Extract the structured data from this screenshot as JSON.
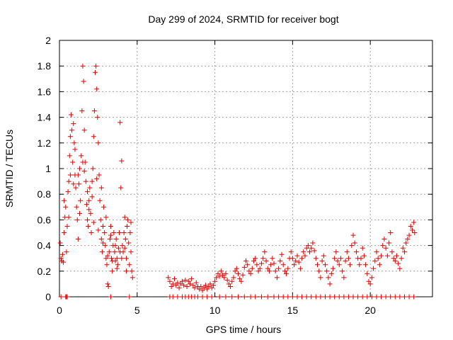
{
  "chart_data": {
    "type": "scatter",
    "title": "Day 299 of 2024, SRMTID for receiver bogt",
    "xlabel": "GPS time / hours",
    "ylabel": "SRMTID / TECUs",
    "xlim": [
      0,
      24
    ],
    "ylim": [
      0,
      2
    ],
    "xticks": [
      0,
      5,
      10,
      15,
      20
    ],
    "yticks": [
      0,
      0.2,
      0.4,
      0.6,
      0.8,
      1,
      1.2,
      1.4,
      1.6,
      1.8,
      2
    ],
    "xtick_labels": [
      "0",
      "5",
      "10",
      "15",
      "20"
    ],
    "ytick_labels": [
      "0",
      "0.2",
      "0.4",
      "0.6",
      "0.8",
      "1",
      "1.2",
      "1.4",
      "1.6",
      "1.8",
      "2"
    ],
    "grid": true,
    "marker": "+",
    "marker_color": "#e00000",
    "series": [
      {
        "name": "SRMTID",
        "points": [
          [
            0.05,
            0.42
          ],
          [
            0.1,
            0.3
          ],
          [
            0.15,
            0.28
          ],
          [
            0.2,
            0.33
          ],
          [
            0.25,
            0.27
          ],
          [
            0.3,
            0.5
          ],
          [
            0.35,
            0.62
          ],
          [
            0.4,
            0.7
          ],
          [
            0.45,
            0.35
          ],
          [
            0.5,
            0.55
          ],
          [
            0.55,
            0.82
          ],
          [
            0.6,
            0.9
          ],
          [
            0.65,
            1.1
          ],
          [
            0.7,
            1.25
          ],
          [
            0.75,
            1.42
          ],
          [
            0.8,
            1.3
          ],
          [
            0.85,
            1.05
          ],
          [
            0.9,
            1.35
          ],
          [
            0.95,
            1.2
          ],
          [
            1.0,
            0.95
          ],
          [
            1.05,
            0.85
          ],
          [
            1.1,
            0.7
          ],
          [
            1.15,
            0.6
          ],
          [
            1.2,
            0.45
          ],
          [
            1.25,
            0.88
          ],
          [
            1.3,
            1.0
          ],
          [
            1.35,
            0.75
          ],
          [
            1.4,
            1.1
          ],
          [
            1.45,
            1.45
          ],
          [
            1.5,
            1.8
          ],
          [
            1.55,
            1.68
          ],
          [
            1.6,
            1.3
          ],
          [
            1.65,
            1.05
          ],
          [
            1.7,
            0.9
          ],
          [
            1.75,
            0.72
          ],
          [
            1.8,
            0.6
          ],
          [
            1.85,
            0.55
          ],
          [
            1.9,
            0.75
          ],
          [
            1.95,
            0.85
          ],
          [
            2.0,
            0.65
          ],
          [
            2.05,
            0.5
          ],
          [
            2.1,
            0.9
          ],
          [
            2.15,
            1.0
          ],
          [
            2.2,
            1.25
          ],
          [
            2.25,
            1.45
          ],
          [
            2.3,
            1.75
          ],
          [
            2.35,
            1.8
          ],
          [
            2.4,
            1.62
          ],
          [
            2.45,
            1.4
          ],
          [
            2.5,
            1.2
          ],
          [
            2.55,
            0.95
          ],
          [
            2.6,
            0.75
          ],
          [
            2.65,
            0.6
          ],
          [
            2.7,
            0.45
          ],
          [
            2.75,
            0.35
          ],
          [
            2.8,
            0.55
          ],
          [
            2.85,
            0.7
          ],
          [
            2.9,
            0.5
          ],
          [
            2.95,
            0.4
          ],
          [
            3.0,
            0.3
          ],
          [
            3.05,
            0.25
          ],
          [
            3.1,
            0.1
          ],
          [
            3.15,
            0.08
          ],
          [
            3.2,
            0.35
          ],
          [
            3.25,
            0.45
          ],
          [
            3.3,
            0.55
          ],
          [
            3.35,
            0.3
          ],
          [
            3.4,
            0.2
          ],
          [
            3.45,
            0.4
          ],
          [
            3.5,
            0.5
          ],
          [
            3.55,
            0.35
          ],
          [
            3.6,
            0.28
          ],
          [
            3.65,
            0.45
          ],
          [
            3.7,
            0.3
          ],
          [
            3.75,
            0.25
          ],
          [
            3.8,
            0.38
          ],
          [
            3.85,
            0.5
          ],
          [
            3.9,
            1.36
          ],
          [
            3.95,
            0.85
          ],
          [
            4.0,
            1.06
          ],
          [
            4.05,
            0.4
          ],
          [
            4.1,
            0.35
          ],
          [
            4.15,
            0.5
          ],
          [
            4.2,
            0.62
          ],
          [
            4.25,
            0.45
          ],
          [
            4.3,
            0.3
          ],
          [
            4.35,
            0.55
          ],
          [
            4.4,
            0.6
          ],
          [
            4.45,
            0.42
          ],
          [
            4.5,
            0.25
          ],
          [
            4.55,
            0.5
          ],
          [
            4.6,
            0.58
          ],
          [
            4.65,
            0.2
          ],
          [
            4.7,
            0.15
          ],
          [
            0.3,
            0.75
          ],
          [
            0.6,
            0.62
          ],
          [
            0.9,
            0.88
          ],
          [
            1.2,
            0.95
          ],
          [
            1.5,
            1.05
          ],
          [
            1.8,
            0.82
          ],
          [
            2.1,
            0.78
          ],
          [
            2.4,
            0.92
          ],
          [
            2.7,
            0.85
          ],
          [
            3.0,
            0.62
          ],
          [
            3.3,
            0.48
          ],
          [
            3.6,
            0.4
          ],
          [
            3.9,
            0.35
          ],
          [
            4.2,
            0.38
          ],
          [
            0.7,
            0.95
          ],
          [
            1.0,
            1.15
          ],
          [
            1.3,
            0.65
          ],
          [
            1.6,
            0.98
          ],
          [
            1.9,
            0.68
          ],
          [
            2.2,
            0.58
          ],
          [
            2.5,
            0.52
          ],
          [
            2.8,
            0.42
          ],
          [
            3.1,
            0.32
          ],
          [
            3.4,
            0.28
          ],
          [
            3.7,
            0.22
          ],
          [
            4.0,
            0.3
          ],
          [
            4.3,
            0.2
          ],
          [
            4.6,
            0.35
          ],
          [
            7.0,
            0.15
          ],
          [
            7.1,
            0.12
          ],
          [
            7.2,
            0.08
          ],
          [
            7.3,
            0.1
          ],
          [
            7.4,
            0.14
          ],
          [
            7.5,
            0.09
          ],
          [
            7.6,
            0.11
          ],
          [
            7.7,
            0.07
          ],
          [
            7.8,
            0.1
          ],
          [
            7.9,
            0.12
          ],
          [
            8.0,
            0.09
          ],
          [
            8.1,
            0.13
          ],
          [
            8.2,
            0.08
          ],
          [
            8.3,
            0.12
          ],
          [
            8.4,
            0.1
          ],
          [
            8.5,
            0.14
          ],
          [
            8.6,
            0.09
          ],
          [
            8.7,
            0.07
          ],
          [
            8.8,
            0.11
          ],
          [
            8.9,
            0.08
          ],
          [
            9.0,
            0.06
          ],
          [
            9.1,
            0.08
          ],
          [
            9.2,
            0.05
          ],
          [
            9.3,
            0.07
          ],
          [
            9.4,
            0.09
          ],
          [
            9.5,
            0.06
          ],
          [
            9.6,
            0.08
          ],
          [
            9.7,
            0.1
          ],
          [
            9.8,
            0.07
          ],
          [
            9.9,
            0.09
          ],
          [
            10.0,
            0.12
          ],
          [
            10.1,
            0.15
          ],
          [
            10.2,
            0.18
          ],
          [
            10.3,
            0.16
          ],
          [
            10.4,
            0.2
          ],
          [
            10.5,
            0.17
          ],
          [
            10.6,
            0.15
          ],
          [
            10.7,
            0.18
          ],
          [
            10.8,
            0.13
          ],
          [
            10.9,
            0.1
          ],
          [
            11.0,
            0.08
          ],
          [
            11.1,
            0.12
          ],
          [
            11.2,
            0.15
          ],
          [
            11.3,
            0.2
          ],
          [
            11.4,
            0.22
          ],
          [
            11.5,
            0.18
          ],
          [
            11.6,
            0.14
          ],
          [
            11.7,
            0.12
          ],
          [
            11.8,
            0.17
          ],
          [
            11.9,
            0.23
          ],
          [
            12.0,
            0.28
          ],
          [
            12.1,
            0.25
          ],
          [
            12.2,
            0.2
          ],
          [
            12.3,
            0.18
          ],
          [
            12.4,
            0.22
          ],
          [
            12.5,
            0.28
          ],
          [
            12.6,
            0.3
          ],
          [
            12.7,
            0.25
          ],
          [
            12.8,
            0.2
          ],
          [
            12.9,
            0.22
          ],
          [
            13.0,
            0.26
          ],
          [
            13.1,
            0.3
          ],
          [
            13.2,
            0.35
          ],
          [
            13.3,
            0.28
          ],
          [
            13.4,
            0.22
          ],
          [
            13.5,
            0.2
          ],
          [
            13.6,
            0.25
          ],
          [
            13.7,
            0.3
          ],
          [
            13.8,
            0.26
          ],
          [
            13.9,
            0.2
          ],
          [
            14.0,
            0.15
          ],
          [
            14.1,
            0.22
          ],
          [
            14.2,
            0.28
          ],
          [
            14.3,
            0.33
          ],
          [
            14.4,
            0.25
          ],
          [
            14.5,
            0.2
          ],
          [
            14.6,
            0.18
          ],
          [
            14.7,
            0.22
          ],
          [
            14.8,
            0.3
          ],
          [
            14.9,
            0.35
          ],
          [
            15.0,
            0.3
          ],
          [
            15.1,
            0.25
          ],
          [
            15.2,
            0.28
          ],
          [
            15.3,
            0.32
          ],
          [
            15.4,
            0.27
          ],
          [
            15.5,
            0.22
          ],
          [
            15.6,
            0.3
          ],
          [
            15.7,
            0.35
          ],
          [
            15.8,
            0.32
          ],
          [
            15.9,
            0.38
          ],
          [
            16.0,
            0.4
          ],
          [
            16.1,
            0.35
          ],
          [
            16.2,
            0.38
          ],
          [
            16.3,
            0.42
          ],
          [
            16.4,
            0.36
          ],
          [
            16.5,
            0.3
          ],
          [
            16.6,
            0.25
          ],
          [
            16.7,
            0.2
          ],
          [
            16.8,
            0.15
          ],
          [
            16.9,
            0.28
          ],
          [
            17.0,
            0.32
          ],
          [
            17.1,
            0.25
          ],
          [
            17.2,
            0.2
          ],
          [
            17.3,
            0.15
          ],
          [
            17.4,
            0.1
          ],
          [
            17.5,
            0.18
          ],
          [
            17.6,
            0.22
          ],
          [
            17.7,
            0.3
          ],
          [
            17.8,
            0.35
          ],
          [
            17.9,
            0.28
          ],
          [
            18.0,
            0.25
          ],
          [
            18.1,
            0.3
          ],
          [
            18.2,
            0.2
          ],
          [
            18.3,
            0.15
          ],
          [
            18.4,
            0.28
          ],
          [
            18.5,
            0.35
          ],
          [
            18.6,
            0.3
          ],
          [
            18.7,
            0.25
          ],
          [
            18.8,
            0.4
          ],
          [
            18.9,
            0.48
          ],
          [
            19.0,
            0.42
          ],
          [
            19.1,
            0.35
          ],
          [
            19.2,
            0.3
          ],
          [
            19.3,
            0.25
          ],
          [
            19.4,
            0.3
          ],
          [
            19.5,
            0.38
          ],
          [
            19.6,
            0.32
          ],
          [
            19.7,
            0.25
          ],
          [
            19.8,
            0.18
          ],
          [
            19.9,
            0.12
          ],
          [
            20.0,
            0.1
          ],
          [
            20.1,
            0.15
          ],
          [
            20.2,
            0.22
          ],
          [
            20.3,
            0.28
          ],
          [
            20.4,
            0.35
          ],
          [
            20.5,
            0.3
          ],
          [
            20.6,
            0.25
          ],
          [
            20.7,
            0.32
          ],
          [
            20.8,
            0.4
          ],
          [
            20.9,
            0.45
          ],
          [
            21.0,
            0.38
          ],
          [
            21.1,
            0.32
          ],
          [
            21.2,
            0.42
          ],
          [
            21.3,
            0.5
          ],
          [
            21.4,
            0.35
          ],
          [
            21.5,
            0.3
          ],
          [
            21.6,
            0.28
          ],
          [
            21.7,
            0.32
          ],
          [
            21.8,
            0.26
          ],
          [
            21.9,
            0.22
          ],
          [
            22.0,
            0.3
          ],
          [
            22.1,
            0.38
          ],
          [
            22.2,
            0.35
          ],
          [
            22.3,
            0.42
          ],
          [
            22.4,
            0.45
          ],
          [
            22.5,
            0.48
          ],
          [
            22.6,
            0.55
          ],
          [
            22.7,
            0.52
          ],
          [
            22.8,
            0.58
          ],
          [
            22.85,
            0.5
          ]
        ]
      }
    ],
    "zero_markers_x": [
      0.1,
      0.4,
      0.45,
      0.5,
      3.3,
      4.5,
      7.1,
      7.3,
      7.6,
      7.9,
      8.1,
      8.3,
      8.5,
      8.7,
      8.9,
      9.2,
      9.5,
      9.8,
      10.3,
      10.7,
      11.1,
      11.5,
      11.9,
      12.3,
      12.6,
      13.0,
      13.4,
      13.8,
      14.1,
      14.4,
      14.7,
      15.0,
      15.3,
      15.6,
      15.9,
      16.2,
      16.5,
      16.8,
      17.1,
      17.4,
      17.7,
      18.0,
      18.3,
      18.6,
      18.9,
      19.2,
      19.5,
      19.8,
      20.1,
      20.4,
      20.7,
      21.0,
      21.3,
      21.6,
      21.9,
      22.2,
      22.5,
      22.8
    ]
  }
}
